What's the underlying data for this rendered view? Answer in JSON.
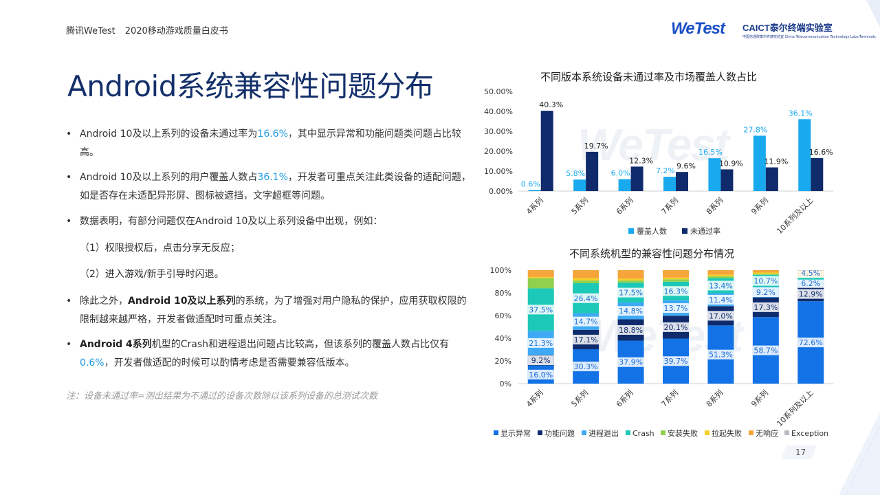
{
  "header": {
    "brand": "腾讯WeTest",
    "report": "2020移动游戏质量白皮书",
    "logo_wetest": "WeTest",
    "logo_caict": "CAICT泰尔终端实验室",
    "logo_caict_sub": "中国信通院泰尔终端实验室  China Telecommunication Technology Labs-Terminals"
  },
  "page_title": "Android系统兼容性问题分布",
  "bullets": {
    "b1": {
      "a": "Android 10及以上系列的设备未通过率为",
      "h": "16.6%",
      "b": "，其中显示异常和功能问题类问题占比较高。"
    },
    "b2": {
      "a": "Android 10及以上系列的用户覆盖人数占",
      "h": "36.1%",
      "b": "，开发者可重点关注此类设备的适配问题，如是否存在未适配异形屏、图标被遮挡，文字超框等问题。"
    },
    "b3": "数据表明，有部分问题仅在Android 10及以上系列设备中出现，例如：",
    "b3_1": "（1）权限授权后，点击分享无反应；",
    "b3_2": "（2）进入游戏/新手引导时闪退。",
    "b4": {
      "a": "除此之外，",
      "bold": "Android 10及以上系列",
      "b": "的系统，为了增强对用户隐私的保护，应用获取权限的限制越来越严格，开发者做适配时可重点关注。"
    },
    "b5": {
      "bold1": "Android 4系列",
      "a": "机型的Crash和进程退出问题占比较高，但该系列的覆盖人数占比仅有",
      "h": "0.6%",
      "b": "，开发者做适配的时候可以酌情考虑是否需要兼容低版本。"
    }
  },
  "note": "注：设备未通过率=测出结果为不通过的设备次数除以该系列设备的总测试次数",
  "watermark": "WeTest",
  "page_number": "17",
  "colors": {
    "title": "#14306b",
    "highlight": "#1e9be0",
    "coverage": "#19a9ee",
    "fail": "#0f2b6b"
  },
  "chart_data": [
    {
      "type": "bar",
      "title": "不同版本系统设备未通过率及市场覆盖人数占比",
      "categories": [
        "4系列",
        "5系列",
        "6系列",
        "7系列",
        "8系列",
        "9系列",
        "10系列及以上"
      ],
      "series": [
        {
          "name": "覆盖人数",
          "color": "#19a9ee",
          "values": [
            0.6,
            5.8,
            6.0,
            7.2,
            16.5,
            27.8,
            36.1
          ]
        },
        {
          "name": "未通过率",
          "color": "#0f2b6b",
          "values": [
            40.3,
            19.7,
            12.3,
            9.6,
            10.9,
            11.9,
            16.6
          ]
        }
      ],
      "ylim": [
        0,
        50
      ],
      "yticks": [
        "0.00%",
        "10.00%",
        "20.00%",
        "30.00%",
        "40.00%",
        "50.00%"
      ],
      "data_labels": {
        "覆盖人数": [
          "0.6%",
          "5.8%",
          "6.0%",
          "7.2%",
          "16.5%",
          "27.8%",
          "36.1%"
        ],
        "未通过率": [
          "40.3%",
          "19.7%",
          "12.3%",
          "9.6%",
          "10.9%",
          "11.9%",
          "16.6%"
        ]
      },
      "legend": "bottom",
      "grid": false
    },
    {
      "type": "bar",
      "stacked": true,
      "title": "不同系统机型的兼容性问题分布情况",
      "categories": [
        "4系列",
        "5系列",
        "6系列",
        "7系列",
        "8系列",
        "9系列",
        "10系列及以上"
      ],
      "series": [
        {
          "name": "显示异常",
          "color": "#1373e6",
          "values": [
            16.0,
            30.3,
            37.9,
            39.7,
            51.3,
            58.7,
            72.6
          ]
        },
        {
          "name": "功能问题",
          "color": "#0f2b6b",
          "values": [
            9.2,
            17.1,
            18.8,
            20.1,
            17.0,
            17.3,
            12.9
          ]
        },
        {
          "name": "进程退出",
          "color": "#3fa9f5",
          "values": [
            21.3,
            14.7,
            14.8,
            13.7,
            11.4,
            9.2,
            6.2
          ]
        },
        {
          "name": "Crash",
          "color": "#1cc8b8",
          "values": [
            37.5,
            26.4,
            17.5,
            16.3,
            13.4,
            10.7,
            2.0
          ]
        },
        {
          "name": "安装失败",
          "color": "#8fd14f",
          "values": [
            9.0,
            2.5,
            2.0,
            2.2,
            1.5,
            1.0,
            0.5
          ]
        },
        {
          "name": "拉起失败",
          "color": "#f5d02a",
          "values": [
            1.0,
            2.0,
            1.5,
            1.5,
            1.4,
            1.0,
            1.0
          ]
        },
        {
          "name": "无响应",
          "color": "#f5a53a",
          "values": [
            6.0,
            7.0,
            7.5,
            6.5,
            4.0,
            2.1,
            4.5
          ]
        },
        {
          "name": "Exception",
          "color": "#b8bcc4",
          "values": [
            0,
            0,
            0,
            0,
            0,
            0,
            0.3
          ]
        }
      ],
      "data_labels": {
        "显示异常": [
          "16.0%",
          "30.3%",
          "37.9%",
          "39.7%",
          "51.3%",
          "58.7%",
          "72.6%"
        ],
        "功能问题": [
          "9.2%",
          "17.1%",
          "18.8%",
          "20.1%",
          "17.0%",
          "17.3%",
          "12.9%"
        ],
        "进程退出": [
          "21.3%",
          "14.7%",
          "14.8%",
          "13.7%",
          "11.4%",
          "9.2%",
          "6.2%"
        ],
        "Crash": [
          "37.5%",
          "26.4%",
          "17.5%",
          "16.3%",
          "13.4%",
          "10.7%",
          ""
        ],
        "无响应": [
          "",
          "",
          "",
          "",
          "",
          "",
          "4.5%"
        ]
      },
      "ylim": [
        0,
        100
      ],
      "yticks": [
        "0%",
        "20%",
        "40%",
        "60%",
        "80%",
        "100%"
      ],
      "legend": "bottom",
      "grid": false
    }
  ]
}
